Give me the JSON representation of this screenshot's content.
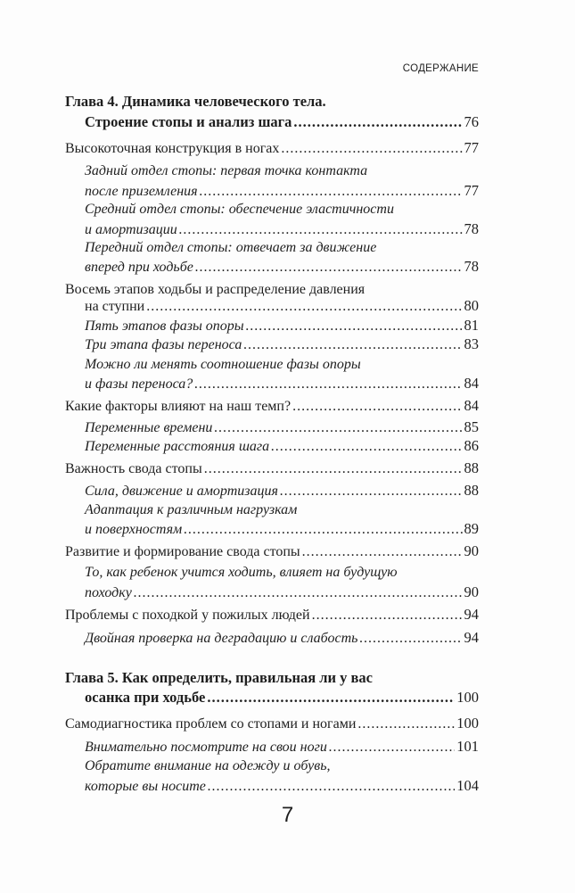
{
  "running_head": "СОДЕРЖАНИЕ",
  "page_number": "7",
  "entries": [
    {
      "level": "chapter",
      "lines": [
        "Глава 4. Динамика человеческого тела.",
        "Строение стопы и анализ шага"
      ],
      "page": "76"
    },
    {
      "level": "section",
      "lines": [
        "Высокоточная конструкция в ногах"
      ],
      "page": "77"
    },
    {
      "level": "subsection",
      "lines": [
        "Задний отдел стопы: первая точка контакта",
        "после приземления"
      ],
      "page": "77"
    },
    {
      "level": "subsection",
      "lines": [
        "Средний отдел стопы: обеспечение эластичности",
        "и амортизации"
      ],
      "page": "78"
    },
    {
      "level": "subsection",
      "lines": [
        "Передний отдел стопы: отвечает за движение",
        "вперед при ходьбе"
      ],
      "page": "78"
    },
    {
      "level": "section",
      "lines": [
        "Восемь этапов ходьбы и распределение давления",
        "на ступни"
      ],
      "page": "80"
    },
    {
      "level": "subsection",
      "lines": [
        "Пять этапов фазы опоры"
      ],
      "page": "81"
    },
    {
      "level": "subsection",
      "lines": [
        "Три этапа фазы переноса"
      ],
      "page": "83"
    },
    {
      "level": "subsection",
      "lines": [
        "Можно ли менять соотношение фазы опоры",
        "и фазы переноса?"
      ],
      "page": "84"
    },
    {
      "level": "section",
      "lines": [
        "Какие факторы влияют на наш темп?"
      ],
      "page": "84"
    },
    {
      "level": "subsection",
      "lines": [
        "Переменные времени"
      ],
      "page": "85"
    },
    {
      "level": "subsection",
      "lines": [
        "Переменные расстояния шага"
      ],
      "page": "86"
    },
    {
      "level": "section",
      "lines": [
        "Важность свода стопы"
      ],
      "page": "88"
    },
    {
      "level": "subsection",
      "lines": [
        "Сила, движение и амортизация"
      ],
      "page": "88"
    },
    {
      "level": "subsection",
      "lines": [
        "Адаптация к различным нагрузкам",
        "и поверхностям"
      ],
      "page": "89"
    },
    {
      "level": "section",
      "lines": [
        "Развитие и формирование свода стопы"
      ],
      "page": "90"
    },
    {
      "level": "subsection",
      "lines": [
        "То, как ребенок учится ходить, влияет на будущую",
        "походку"
      ],
      "page": "90"
    },
    {
      "level": "section",
      "lines": [
        "Проблемы с походкой у пожилых людей"
      ],
      "page": "94"
    },
    {
      "level": "subsection",
      "lines": [
        "Двойная проверка на деградацию и слабость"
      ],
      "page": "94"
    },
    {
      "level": "chapter",
      "lines": [
        "Глава 5. Как определить, правильная ли у вас",
        "осанка при ходьбе"
      ],
      "page": "100"
    },
    {
      "level": "section",
      "lines": [
        "Самодиагностика проблем со стопами и ногами"
      ],
      "page": "100"
    },
    {
      "level": "subsection",
      "lines": [
        "Внимательно посмотрите на свои ноги"
      ],
      "page": "101"
    },
    {
      "level": "subsection",
      "lines": [
        "Обратите внимание на одежду и обувь,",
        "которые вы носите"
      ],
      "page": "104"
    }
  ]
}
